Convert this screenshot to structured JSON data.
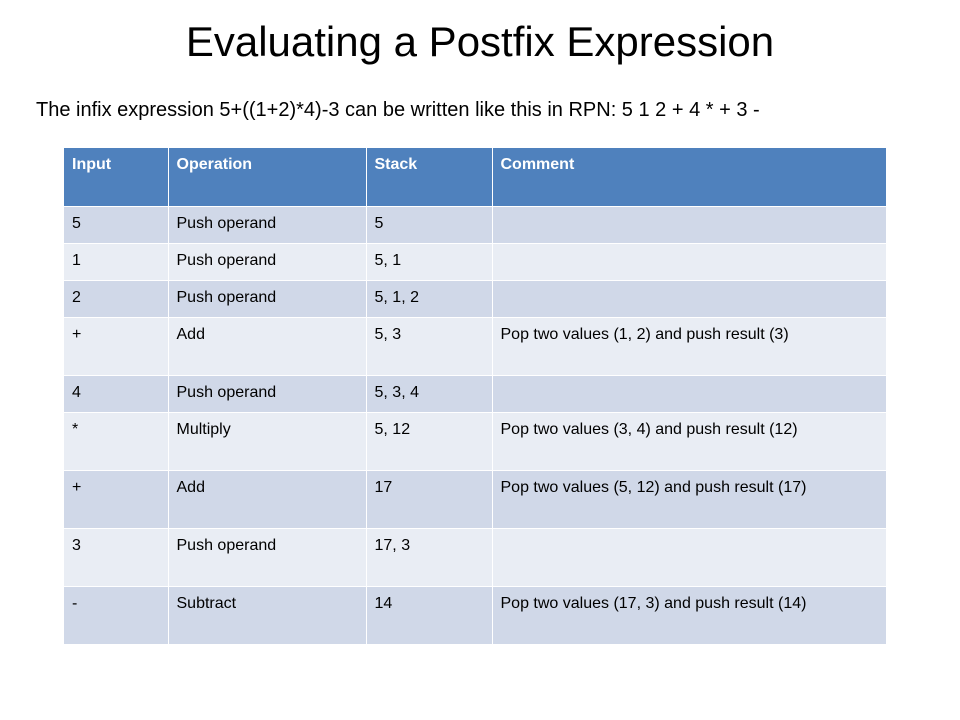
{
  "slide": {
    "title": "Evaluating a Postfix Expression",
    "subtitle": "The infix expression 5+((1+2)*4)-3 can be written like this in RPN: 5 1 2 + 4 * + 3 -"
  },
  "table": {
    "headers": [
      "Input",
      "Operation",
      "Stack",
      "Comment"
    ],
    "rows": [
      [
        "5",
        "Push operand",
        "5",
        ""
      ],
      [
        "1",
        "Push operand",
        "5, 1",
        ""
      ],
      [
        "2",
        "Push operand",
        "5, 1, 2",
        ""
      ],
      [
        "+",
        "Add",
        "5, 3",
        "Pop two values (1, 2) and push result (3)"
      ],
      [
        "4",
        "Push operand",
        "5, 3, 4",
        ""
      ],
      [
        "*",
        "Multiply",
        "5, 12",
        "Pop two values (3, 4) and push result (12)"
      ],
      [
        "+",
        "Add",
        "17",
        "Pop two values (5, 12) and push result (17)"
      ],
      [
        "3",
        "Push operand",
        "17, 3",
        ""
      ],
      [
        "-",
        "Subtract",
        "14",
        "Pop two values (17, 3) and push result (14)"
      ]
    ]
  }
}
